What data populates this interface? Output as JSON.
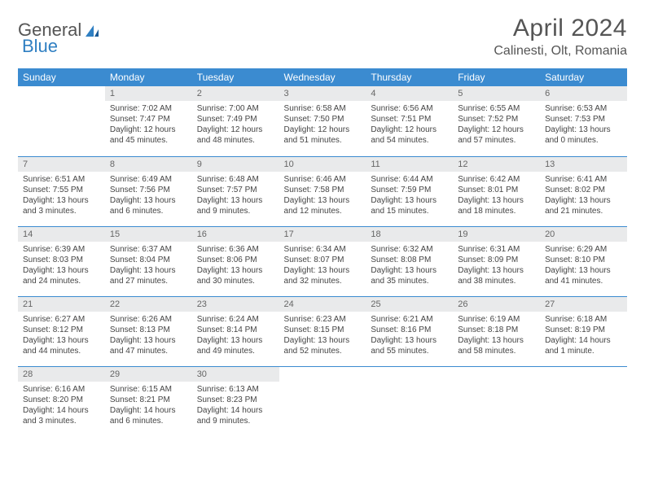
{
  "logo": {
    "text1": "General",
    "text2": "Blue"
  },
  "title": "April 2024",
  "location": "Calinesti, Olt, Romania",
  "colors": {
    "header_bg": "#3b8bd0",
    "header_text": "#ffffff",
    "daynum_bg": "#e9eaeb",
    "daynum_text": "#666666",
    "cell_border": "#3b8bd0",
    "text": "#444444",
    "logo_gray": "#555555",
    "logo_blue": "#2f7fc2"
  },
  "weekdays": [
    "Sunday",
    "Monday",
    "Tuesday",
    "Wednesday",
    "Thursday",
    "Friday",
    "Saturday"
  ],
  "grid": [
    [
      null,
      {
        "n": "1",
        "sr": "7:02 AM",
        "ss": "7:47 PM",
        "dl": "12 hours and 45 minutes."
      },
      {
        "n": "2",
        "sr": "7:00 AM",
        "ss": "7:49 PM",
        "dl": "12 hours and 48 minutes."
      },
      {
        "n": "3",
        "sr": "6:58 AM",
        "ss": "7:50 PM",
        "dl": "12 hours and 51 minutes."
      },
      {
        "n": "4",
        "sr": "6:56 AM",
        "ss": "7:51 PM",
        "dl": "12 hours and 54 minutes."
      },
      {
        "n": "5",
        "sr": "6:55 AM",
        "ss": "7:52 PM",
        "dl": "12 hours and 57 minutes."
      },
      {
        "n": "6",
        "sr": "6:53 AM",
        "ss": "7:53 PM",
        "dl": "13 hours and 0 minutes."
      }
    ],
    [
      {
        "n": "7",
        "sr": "6:51 AM",
        "ss": "7:55 PM",
        "dl": "13 hours and 3 minutes."
      },
      {
        "n": "8",
        "sr": "6:49 AM",
        "ss": "7:56 PM",
        "dl": "13 hours and 6 minutes."
      },
      {
        "n": "9",
        "sr": "6:48 AM",
        "ss": "7:57 PM",
        "dl": "13 hours and 9 minutes."
      },
      {
        "n": "10",
        "sr": "6:46 AM",
        "ss": "7:58 PM",
        "dl": "13 hours and 12 minutes."
      },
      {
        "n": "11",
        "sr": "6:44 AM",
        "ss": "7:59 PM",
        "dl": "13 hours and 15 minutes."
      },
      {
        "n": "12",
        "sr": "6:42 AM",
        "ss": "8:01 PM",
        "dl": "13 hours and 18 minutes."
      },
      {
        "n": "13",
        "sr": "6:41 AM",
        "ss": "8:02 PM",
        "dl": "13 hours and 21 minutes."
      }
    ],
    [
      {
        "n": "14",
        "sr": "6:39 AM",
        "ss": "8:03 PM",
        "dl": "13 hours and 24 minutes."
      },
      {
        "n": "15",
        "sr": "6:37 AM",
        "ss": "8:04 PM",
        "dl": "13 hours and 27 minutes."
      },
      {
        "n": "16",
        "sr": "6:36 AM",
        "ss": "8:06 PM",
        "dl": "13 hours and 30 minutes."
      },
      {
        "n": "17",
        "sr": "6:34 AM",
        "ss": "8:07 PM",
        "dl": "13 hours and 32 minutes."
      },
      {
        "n": "18",
        "sr": "6:32 AM",
        "ss": "8:08 PM",
        "dl": "13 hours and 35 minutes."
      },
      {
        "n": "19",
        "sr": "6:31 AM",
        "ss": "8:09 PM",
        "dl": "13 hours and 38 minutes."
      },
      {
        "n": "20",
        "sr": "6:29 AM",
        "ss": "8:10 PM",
        "dl": "13 hours and 41 minutes."
      }
    ],
    [
      {
        "n": "21",
        "sr": "6:27 AM",
        "ss": "8:12 PM",
        "dl": "13 hours and 44 minutes."
      },
      {
        "n": "22",
        "sr": "6:26 AM",
        "ss": "8:13 PM",
        "dl": "13 hours and 47 minutes."
      },
      {
        "n": "23",
        "sr": "6:24 AM",
        "ss": "8:14 PM",
        "dl": "13 hours and 49 minutes."
      },
      {
        "n": "24",
        "sr": "6:23 AM",
        "ss": "8:15 PM",
        "dl": "13 hours and 52 minutes."
      },
      {
        "n": "25",
        "sr": "6:21 AM",
        "ss": "8:16 PM",
        "dl": "13 hours and 55 minutes."
      },
      {
        "n": "26",
        "sr": "6:19 AM",
        "ss": "8:18 PM",
        "dl": "13 hours and 58 minutes."
      },
      {
        "n": "27",
        "sr": "6:18 AM",
        "ss": "8:19 PM",
        "dl": "14 hours and 1 minute."
      }
    ],
    [
      {
        "n": "28",
        "sr": "6:16 AM",
        "ss": "8:20 PM",
        "dl": "14 hours and 3 minutes."
      },
      {
        "n": "29",
        "sr": "6:15 AM",
        "ss": "8:21 PM",
        "dl": "14 hours and 6 minutes."
      },
      {
        "n": "30",
        "sr": "6:13 AM",
        "ss": "8:23 PM",
        "dl": "14 hours and 9 minutes."
      },
      null,
      null,
      null,
      null
    ]
  ],
  "labels": {
    "sunrise": "Sunrise:",
    "sunset": "Sunset:",
    "daylight": "Daylight:"
  }
}
